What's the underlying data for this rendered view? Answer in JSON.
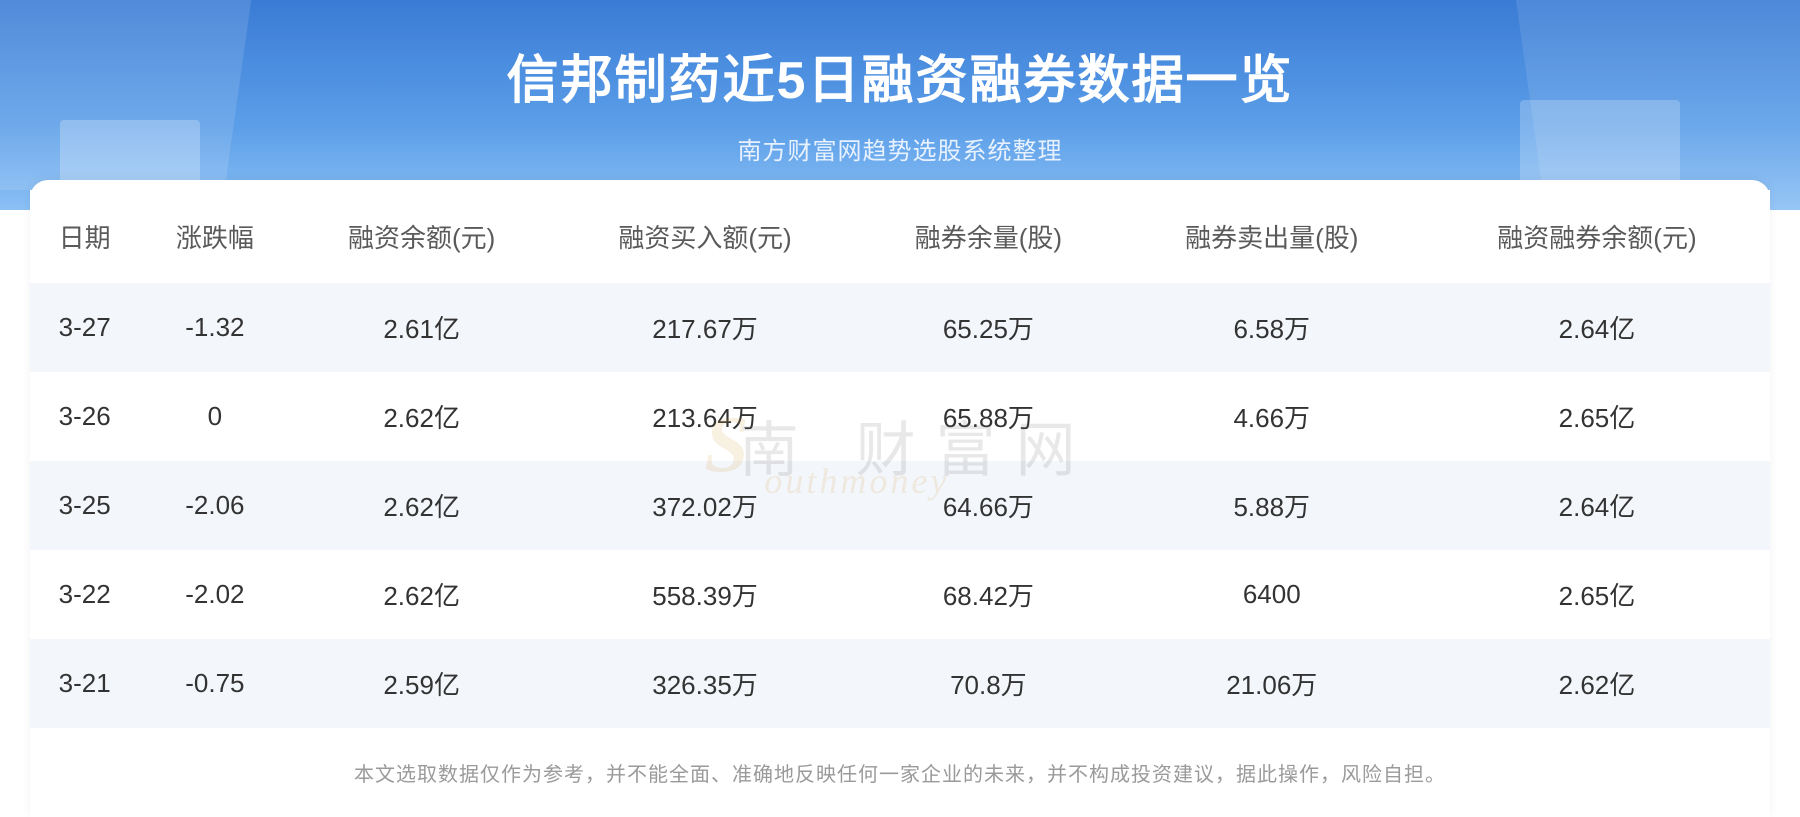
{
  "header": {
    "title": "信邦制药近5日融资融券数据一览",
    "subtitle": "南方财富网趋势选股系统整理",
    "bg_gradient_start": "#3a7bd5",
    "bg_gradient_mid": "#5b9ee8",
    "bg_gradient_end": "#8bc0f5",
    "title_color": "#ffffff",
    "title_fontsize": 52,
    "subtitle_color": "#e8f2ff",
    "subtitle_fontsize": 24
  },
  "table": {
    "type": "table",
    "header_color": "#5a5a5a",
    "header_fontsize": 26,
    "cell_color": "#333333",
    "cell_fontsize": 26,
    "row_odd_bg": "#f3f6fb",
    "row_even_bg": "#ffffff",
    "columns": [
      "日期",
      "涨跌幅",
      "融资余额(元)",
      "融资买入额(元)",
      "融券余量(股)",
      "融券卖出量(股)",
      "融资融券余额(元)"
    ],
    "rows": [
      [
        "3-27",
        "-1.32",
        "2.61亿",
        "217.67万",
        "65.25万",
        "6.58万",
        "2.64亿"
      ],
      [
        "3-26",
        "0",
        "2.62亿",
        "213.64万",
        "65.88万",
        "4.66万",
        "2.65亿"
      ],
      [
        "3-25",
        "-2.06",
        "2.62亿",
        "372.02万",
        "64.66万",
        "5.88万",
        "2.64亿"
      ],
      [
        "3-22",
        "-2.02",
        "2.62亿",
        "558.39万",
        "68.42万",
        "6400",
        "2.65亿"
      ],
      [
        "3-21",
        "-0.75",
        "2.59亿",
        "326.35万",
        "70.8万",
        "21.06万",
        "2.62亿"
      ]
    ]
  },
  "disclaimer": {
    "text": "本文选取数据仅作为参考，并不能全面、准确地反映任何一家企业的未来，并不构成投资建议，据此操作，风险自担。",
    "color": "#9a9a9a",
    "fontsize": 20
  },
  "watermark": {
    "logo_char": "S",
    "cn_text": "南 财富网",
    "en_text": "outhmoney",
    "logo_color": "#d4a040",
    "cn_color": "#6a6a6a",
    "opacity": 0.15
  }
}
